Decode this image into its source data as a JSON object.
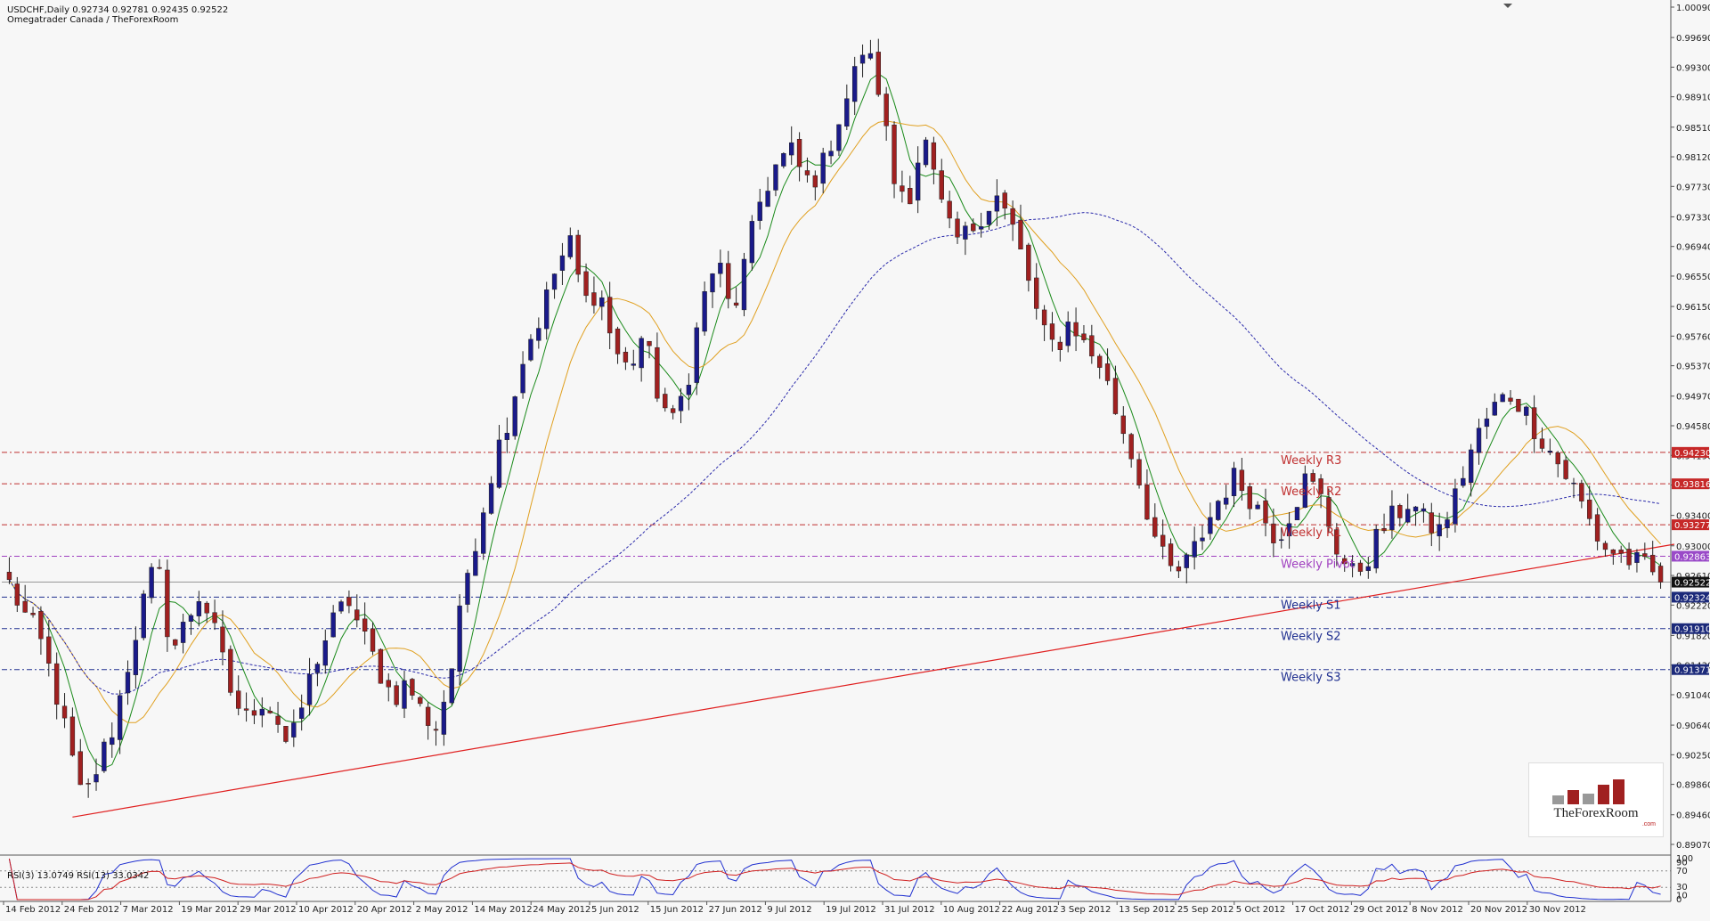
{
  "header": {
    "symbol_line": "USDCHF,Daily  0.92734 0.92781 0.92435 0.92522",
    "source_line": "Omegatrader Canada / TheForexRoom"
  },
  "logo": {
    "name": "TheForexRoom",
    "sub": ".com"
  },
  "rsi_header": "RSI(3) 13.0749  RSI(13) 33.0342",
  "chart_data": {
    "type": "candlestick",
    "symbol": "USDCHF",
    "timeframe": "Daily",
    "price_axis": {
      "ylim": [
        0.8907,
        1.0009
      ],
      "ticks": [
        "1.00090",
        "0.99690",
        "0.99300",
        "0.98910",
        "0.98510",
        "0.98120",
        "0.97730",
        "0.97330",
        "0.96940",
        "0.96550",
        "0.96150",
        "0.95760",
        "0.95370",
        "0.94970",
        "0.94580",
        "0.94190",
        "0.93800",
        "0.93400",
        "0.93000",
        "0.92610",
        "0.92220",
        "0.91820",
        "0.91430",
        "0.91040",
        "0.90640",
        "0.90250",
        "0.89860",
        "0.89460",
        "0.89070"
      ]
    },
    "x_axis": {
      "ticks": [
        "14 Feb 2012",
        "24 Feb 2012",
        "7 Mar 2012",
        "19 Mar 2012",
        "29 Mar 2012",
        "10 Apr 2012",
        "20 Apr 2012",
        "2 May 2012",
        "14 May 2012",
        "24 May 2012",
        "5 Jun 2012",
        "15 Jun 2012",
        "27 Jun 2012",
        "9 Jul 2012",
        "19 Jul 2012",
        "31 Jul 2012",
        "10 Aug 2012",
        "22 Aug 2012",
        "3 Sep 2012",
        "13 Sep 2012",
        "25 Sep 2012",
        "5 Oct 2012",
        "17 Oct 2012",
        "29 Oct 2012",
        "8 Nov 2012",
        "20 Nov 2012",
        "30 Nov 2012"
      ]
    },
    "close_path": [
      0.925,
      0.921,
      0.918,
      0.912,
      0.904,
      0.896,
      0.901,
      0.906,
      0.914,
      0.922,
      0.928,
      0.916,
      0.92,
      0.924,
      0.918,
      0.911,
      0.907,
      0.91,
      0.908,
      0.903,
      0.91,
      0.916,
      0.92,
      0.923,
      0.918,
      0.914,
      0.91,
      0.912,
      0.908,
      0.906,
      0.914,
      0.926,
      0.934,
      0.942,
      0.948,
      0.956,
      0.96,
      0.966,
      0.97,
      0.962,
      0.964,
      0.956,
      0.953,
      0.958,
      0.95,
      0.946,
      0.952,
      0.962,
      0.968,
      0.96,
      0.968,
      0.976,
      0.98,
      0.982,
      0.978,
      0.979,
      0.985,
      0.99,
      0.996,
      0.99,
      0.978,
      0.976,
      0.984,
      0.976,
      0.97,
      0.971,
      0.974,
      0.976,
      0.972,
      0.966,
      0.958,
      0.956,
      0.96,
      0.956,
      0.954,
      0.948,
      0.943,
      0.936,
      0.929,
      0.926,
      0.928,
      0.932,
      0.936,
      0.939,
      0.937,
      0.934,
      0.931,
      0.935,
      0.939,
      0.936,
      0.93,
      0.926,
      0.928,
      0.932,
      0.934,
      0.936,
      0.933,
      0.932,
      0.936,
      0.942,
      0.946,
      0.949,
      0.95,
      0.947,
      0.944,
      0.941,
      0.938,
      0.934,
      0.93,
      0.929,
      0.928,
      0.927,
      0.9252
    ],
    "candle_count": 210,
    "last_candle": {
      "open": 0.92734,
      "high": 0.92781,
      "low": 0.92435,
      "close": 0.92522
    },
    "series": [
      {
        "name": "",
        "kind": "moving-average-fast",
        "color": "#1a8a1a"
      },
      {
        "name": "",
        "kind": "moving-average-mid",
        "color": "#e0a020"
      },
      {
        "name": "",
        "kind": "moving-average-slow",
        "color": "#2a2aaa"
      }
    ],
    "trendline": {
      "from": [
        "24 Feb 2012",
        0.8943
      ],
      "to": [
        "30 Nov 2012",
        0.9299
      ],
      "color": "#e02020"
    },
    "levels": [
      {
        "label": "Weekly R3",
        "value": 0.9423,
        "box": "0.94230",
        "color": "#c03030"
      },
      {
        "label": "Weekly R2",
        "value": 0.93816,
        "box": "0.93816",
        "color": "#c03030"
      },
      {
        "label": "Weekly R1",
        "value": 0.93277,
        "box": "0.93277",
        "color": "#c03030"
      },
      {
        "label": "Weekly Pivot",
        "value": 0.92863,
        "box": "0.92863",
        "color": "#a040c0"
      },
      {
        "label": "Weekly S1",
        "value": 0.92324,
        "box": "0.92324",
        "color": "#203090"
      },
      {
        "label": "Weekly S2",
        "value": 0.9191,
        "box": "0.91910",
        "color": "#203090"
      },
      {
        "label": "Weekly S3",
        "value": 0.91371,
        "box": "0.91371",
        "color": "#203090"
      }
    ],
    "current_price": {
      "value": 0.92522,
      "box": "0.92522"
    },
    "rsi_panel": {
      "levels": [
        "100",
        "90",
        "70",
        "30",
        "10",
        "0"
      ],
      "series": [
        {
          "name": "RSI(3)",
          "value": 13.0749,
          "color": "#2030d0"
        },
        {
          "name": "RSI(13)",
          "value": 33.0342,
          "color": "#d02020"
        }
      ]
    },
    "grid": false
  }
}
